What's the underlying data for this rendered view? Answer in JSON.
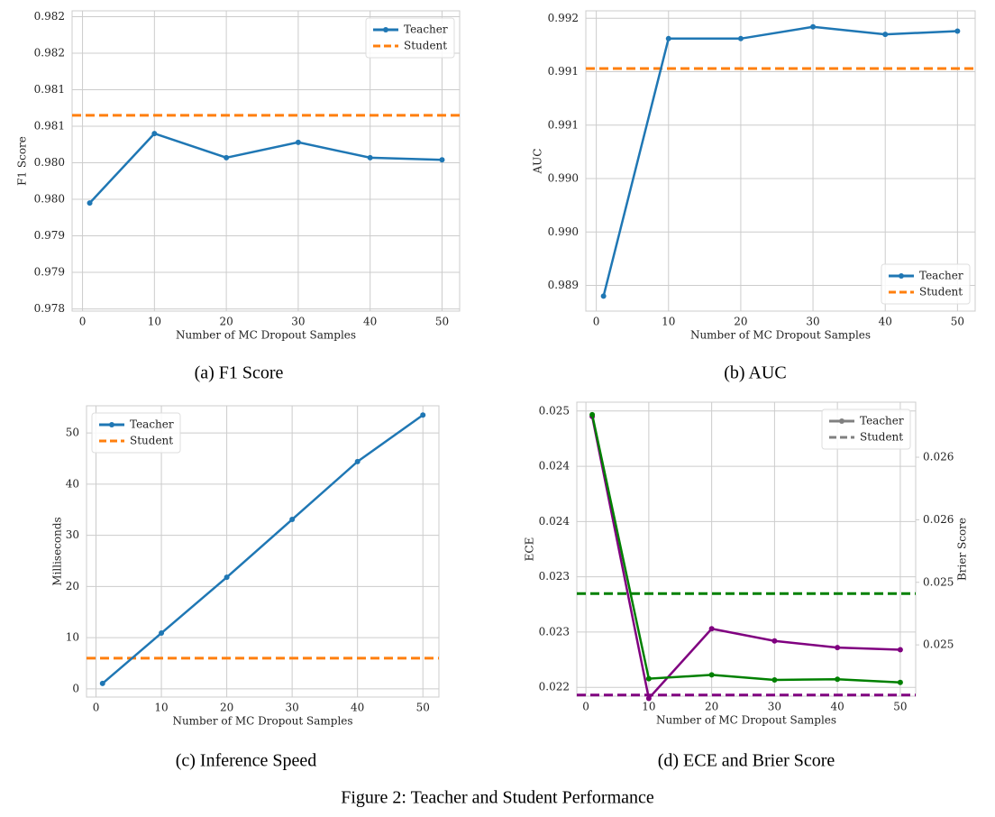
{
  "chart_data": [
    {
      "type": "line",
      "caption": "(a) F1 Score",
      "xlabel": "Number of MC Dropout Samples",
      "ylabel": "F1 Score",
      "x": [
        1,
        10,
        20,
        30,
        40,
        50
      ],
      "series": [
        {
          "name": "Teacher",
          "color": "#1f77b4",
          "values": [
            0.97945,
            0.9804,
            0.98007,
            0.98028,
            0.98007,
            0.98004
          ]
        }
      ],
      "reference_lines": [
        {
          "name": "Student",
          "color": "#ff7f0e",
          "value": 0.98065
        }
      ],
      "xlim": [
        -1.45,
        52.45
      ],
      "xticks": [
        0,
        10,
        20,
        30,
        40,
        50
      ],
      "ylim": [
        0.97797,
        0.98208
      ],
      "yticks": [
        {
          "value": 0.978,
          "label": "0.978"
        },
        {
          "value": 0.9785,
          "label": "0.979"
        },
        {
          "value": 0.979,
          "label": "0.979"
        },
        {
          "value": 0.9795,
          "label": "0.980"
        },
        {
          "value": 0.98,
          "label": "0.980"
        },
        {
          "value": 0.9805,
          "label": "0.981"
        },
        {
          "value": 0.981,
          "label": "0.981"
        },
        {
          "value": 0.9815,
          "label": "0.982"
        },
        {
          "value": 0.982,
          "label": "0.982"
        }
      ],
      "grid": true,
      "legend": "upper right"
    },
    {
      "type": "line",
      "caption": "(b) AUC",
      "xlabel": "Number of MC Dropout Samples",
      "ylabel": "AUC",
      "x": [
        1,
        10,
        20,
        30,
        40,
        50
      ],
      "series": [
        {
          "name": "Teacher",
          "color": "#1f77b4",
          "values": [
            0.9894,
            0.99181,
            0.99181,
            0.99192,
            0.99185,
            0.99188
          ]
        }
      ],
      "reference_lines": [
        {
          "name": "Student",
          "color": "#ff7f0e",
          "value": 0.99153
        }
      ],
      "xlim": [
        -1.45,
        52.45
      ],
      "xticks": [
        0,
        10,
        20,
        30,
        40,
        50
      ],
      "ylim": [
        0.98926,
        0.99207
      ],
      "yticks": [
        {
          "value": 0.9895,
          "label": "0.989"
        },
        {
          "value": 0.99,
          "label": "0.990"
        },
        {
          "value": 0.9905,
          "label": "0.990"
        },
        {
          "value": 0.991,
          "label": "0.991"
        },
        {
          "value": 0.9915,
          "label": "0.991"
        },
        {
          "value": 0.992,
          "label": "0.992"
        }
      ],
      "grid": true,
      "legend": "lower right"
    },
    {
      "type": "line",
      "caption": "(c) Inference Speed",
      "xlabel": "Number of MC Dropout Samples",
      "ylabel": "Milliseconds",
      "x": [
        1,
        10,
        20,
        30,
        40,
        50
      ],
      "series": [
        {
          "name": "Teacher",
          "color": "#1f77b4",
          "values": [
            1.06,
            10.9,
            21.8,
            33.1,
            44.4,
            53.5
          ]
        }
      ],
      "reference_lines": [
        {
          "name": "Student",
          "color": "#ff7f0e",
          "value": 6.0
        }
      ],
      "xlim": [
        -1.45,
        52.45
      ],
      "xticks": [
        0,
        10,
        20,
        30,
        40,
        50
      ],
      "ylim": [
        -1.6,
        55.3
      ],
      "yticks": [
        0,
        10,
        20,
        30,
        40,
        50
      ],
      "grid": true,
      "legend": "upper left"
    },
    {
      "type": "line",
      "caption": "(d) ECE and Brier Score",
      "xlabel": "Number of MC Dropout Samples",
      "ylabel": "ECE",
      "y2label": "Brier Score",
      "y_color": "#800080",
      "y2_color": "#008000",
      "x": [
        1,
        10,
        20,
        30,
        40,
        50
      ],
      "series": [
        {
          "color": "#800080",
          "values": [
            0.02495,
            0.0224,
            0.02303,
            0.02292,
            0.02286,
            0.02284
          ]
        },
        {
          "color": "#008000",
          "axis": "y2",
          "values": [
            0.02634,
            0.02423,
            0.02426,
            0.02422,
            0.024225,
            0.0242
          ]
        }
      ],
      "reference_lines": [
        {
          "color": "#800080",
          "value": 0.02243
        },
        {
          "color": "#008000",
          "axis": "y2",
          "value": 0.02491
        }
      ],
      "legend_entries": [
        {
          "name": "Teacher",
          "color": "#808080",
          "style": "solid"
        },
        {
          "name": "Student",
          "color": "#808080",
          "style": "dashed"
        }
      ],
      "xlim": [
        -1.45,
        52.45
      ],
      "xticks": [
        0,
        10,
        20,
        30,
        40,
        50
      ],
      "ylim": [
        0.02242,
        0.02508
      ],
      "yticks": [
        {
          "value": 0.0225,
          "label": "0.022"
        },
        {
          "value": 0.023,
          "label": "0.023"
        },
        {
          "value": 0.0235,
          "label": "0.023"
        },
        {
          "value": 0.024,
          "label": "0.024"
        },
        {
          "value": 0.0245,
          "label": "0.024"
        },
        {
          "value": 0.025,
          "label": "0.025"
        }
      ],
      "y2lim": [
        0.02409,
        0.02644
      ],
      "y2ticks": [
        {
          "value": 0.0245,
          "label": "0.025"
        },
        {
          "value": 0.025,
          "label": "0.025"
        },
        {
          "value": 0.0255,
          "label": "0.026"
        },
        {
          "value": 0.026,
          "label": "0.026"
        }
      ],
      "grid": true,
      "legend": "upper right"
    }
  ],
  "figure_caption": "Figure 2: Teacher and Student Performance"
}
